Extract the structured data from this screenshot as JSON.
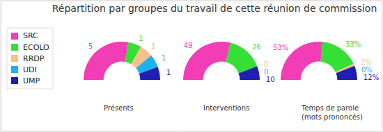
{
  "title": "Répartition par groupes du travail de cette réunion de commission",
  "chart_data": [
    {
      "type": "pie",
      "title": "Présents",
      "categories": [
        "SRC",
        "ECOLO",
        "RRDP",
        "UDI",
        "UMP"
      ],
      "values": [
        5,
        1,
        1,
        1,
        1
      ],
      "colors": [
        "#f23db6",
        "#33e033",
        "#f5c08a",
        "#1fb0f2",
        "#1f1fb0"
      ],
      "data_labels": true,
      "legend": "left"
    },
    {
      "type": "pie",
      "title": "Interventions",
      "categories": [
        "SRC",
        "ECOLO",
        "RRDP",
        "UDI",
        "UMP"
      ],
      "values": [
        49,
        26,
        0,
        0,
        10
      ],
      "colors": [
        "#f23db6",
        "#33e033",
        "#f5c08a",
        "#1fb0f2",
        "#1f1fb0"
      ],
      "data_labels": true
    },
    {
      "type": "pie",
      "title": "Temps de parole (mots prononcés)",
      "categories": [
        "SRC",
        "ECOLO",
        "RRDP",
        "UDI",
        "UMP"
      ],
      "values": [
        53,
        33,
        2,
        0,
        12
      ],
      "value_labels": [
        "53%",
        "33%",
        "2%",
        "0%",
        "12%"
      ],
      "colors": [
        "#f23db6",
        "#33e033",
        "#f5c08a",
        "#1fb0f2",
        "#1f1fb0"
      ],
      "data_labels": true
    }
  ]
}
